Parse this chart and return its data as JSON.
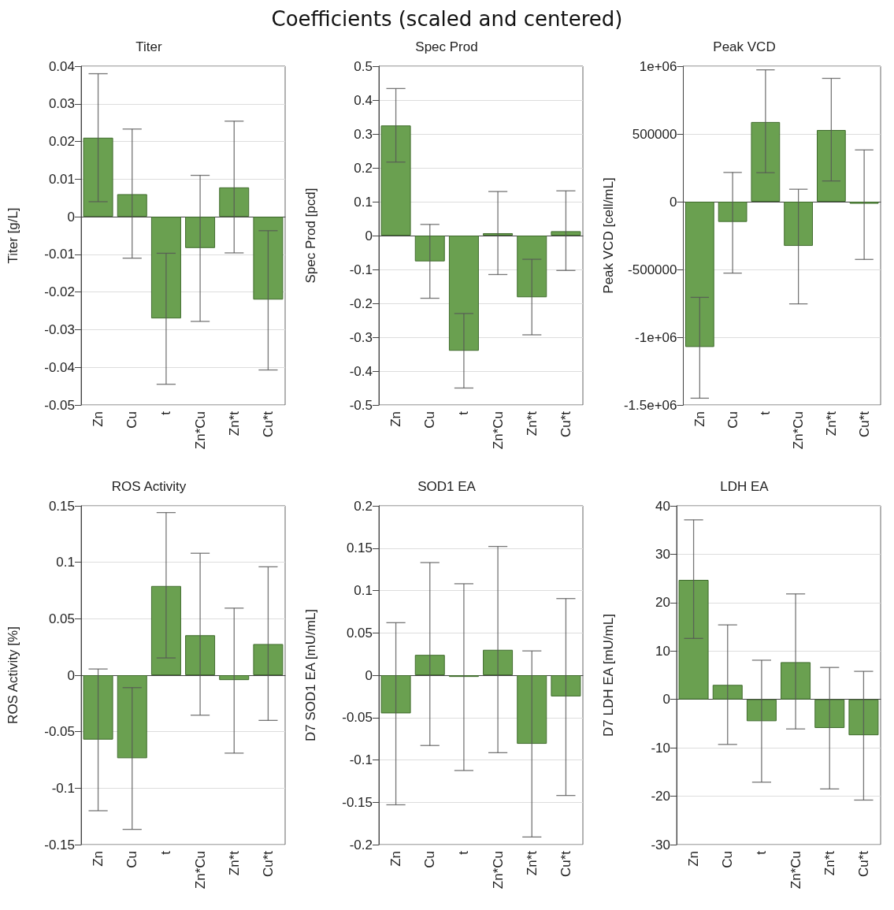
{
  "chart_data": [
    {
      "type": "other",
      "title": "Coefficients (scaled and centered)"
    },
    {
      "type": "bar",
      "title": "Titer",
      "ylabel": "Titer [g/L]",
      "categories": [
        "Zn",
        "Cu",
        "t",
        "Zn*Cu",
        "Zn*t",
        "Cu*t"
      ],
      "color": "#6aa050",
      "values": [
        0.021,
        0.006,
        -0.027,
        -0.0083,
        0.0078,
        -0.022
      ],
      "errors": [
        [
          0.004,
          0.038
        ],
        [
          -0.011,
          0.0233
        ],
        [
          -0.0445,
          -0.0097
        ],
        [
          -0.0278,
          0.011
        ],
        [
          -0.0096,
          0.0254
        ],
        [
          -0.0407,
          -0.0037
        ]
      ],
      "ylim": [
        -0.05,
        0.04
      ],
      "yticks": [
        -0.05,
        -0.04,
        -0.03,
        -0.02,
        -0.01,
        0,
        0.01,
        0.02,
        0.03,
        0.04
      ],
      "grid": "y"
    },
    {
      "type": "bar",
      "title": "Spec Prod",
      "ylabel": "Spec Prod [pcd]",
      "categories": [
        "Zn",
        "Cu",
        "t",
        "Zn*Cu",
        "Zn*t",
        "Cu*t"
      ],
      "color": "#6aa050",
      "values": [
        0.325,
        -0.076,
        -0.34,
        0.007,
        -0.182,
        0.013
      ],
      "errors": [
        [
          0.217,
          0.434
        ],
        [
          -0.185,
          0.033
        ],
        [
          -0.45,
          -0.23
        ],
        [
          -0.115,
          0.13
        ],
        [
          -0.293,
          -0.07
        ],
        [
          -0.103,
          0.132
        ]
      ],
      "ylim": [
        -0.5,
        0.5
      ],
      "yticks": [
        -0.5,
        -0.4,
        -0.3,
        -0.2,
        -0.1,
        0,
        0.1,
        0.2,
        0.3,
        0.4,
        0.5
      ],
      "grid": "y"
    },
    {
      "type": "bar",
      "title": "Peak VCD",
      "ylabel": "Peak VCD [cell/mL]",
      "categories": [
        "Zn",
        "Cu",
        "t",
        "Zn*Cu",
        "Zn*t",
        "Cu*t"
      ],
      "color": "#6aa050",
      "values": [
        -1072000,
        -149000,
        588000,
        -326000,
        529000,
        -15000
      ],
      "errors": [
        [
          -1450000,
          -706000
        ],
        [
          -527000,
          216000
        ],
        [
          214000,
          973000
        ],
        [
          -754000,
          92000
        ],
        [
          153000,
          910000
        ],
        [
          -426000,
          382000
        ]
      ],
      "ylim": [
        -1500000,
        1000000
      ],
      "yticks": [
        {
          "value": -1500000,
          "label": "-1.5e+06"
        },
        {
          "value": -1000000,
          "label": "-1e+06"
        },
        -500000,
        0,
        500000,
        {
          "value": 1000000,
          "label": "1e+06"
        }
      ],
      "grid": "y"
    },
    {
      "type": "bar",
      "title": "ROS Activity",
      "ylabel": "ROS Activity [%]",
      "categories": [
        "Zn",
        "Cu",
        "t",
        "Zn*Cu",
        "Zn*t",
        "Cu*t"
      ],
      "color": "#6aa050",
      "values": [
        -0.057,
        -0.0735,
        0.079,
        0.0354,
        -0.0043,
        0.0276
      ],
      "errors": [
        [
          -0.12,
          0.0055
        ],
        [
          -0.1365,
          -0.011
        ],
        [
          0.0153,
          0.144
        ],
        [
          -0.0354,
          0.108
        ],
        [
          -0.069,
          0.0594
        ],
        [
          -0.04,
          0.096
        ]
      ],
      "ylim": [
        -0.15,
        0.15
      ],
      "yticks": [
        -0.15,
        -0.1,
        -0.05,
        0,
        0.05,
        0.1,
        0.15
      ],
      "grid": "y"
    },
    {
      "type": "bar",
      "title": "SOD1 EA",
      "ylabel": "D7 SOD1 EA [mU/mL]",
      "categories": [
        "Zn",
        "Cu",
        "t",
        "Zn*Cu",
        "Zn*t",
        "Cu*t"
      ],
      "color": "#6aa050",
      "values": [
        -0.045,
        0.024,
        -0.002,
        0.03,
        -0.081,
        -0.025
      ],
      "errors": [
        [
          -0.153,
          0.062
        ],
        [
          -0.083,
          0.133
        ],
        [
          -0.1125,
          0.108
        ],
        [
          -0.0915,
          0.152
        ],
        [
          -0.191,
          0.0287
        ],
        [
          -0.142,
          0.0905
        ]
      ],
      "ylim": [
        -0.2,
        0.2
      ],
      "yticks": [
        -0.2,
        -0.15,
        -0.1,
        -0.05,
        0,
        0.05,
        0.1,
        0.15,
        0.2
      ],
      "grid": "y"
    },
    {
      "type": "bar",
      "title": "LDH EA",
      "ylabel": "D7 LDH EA [mU/mL]",
      "categories": [
        "Zn",
        "Cu",
        "t",
        "Zn*Cu",
        "Zn*t",
        "Cu*t"
      ],
      "color": "#6aa050",
      "values": [
        24.7,
        3.0,
        -4.5,
        7.7,
        -5.9,
        -7.4
      ],
      "errors": [
        [
          12.6,
          37.1
        ],
        [
          -9.3,
          15.4
        ],
        [
          -17.1,
          8.1
        ],
        [
          -6.1,
          21.8
        ],
        [
          -18.5,
          6.6
        ],
        [
          -20.8,
          5.8
        ]
      ],
      "ylim": [
        -30,
        40
      ],
      "yticks": [
        -30,
        -20,
        -10,
        0,
        10,
        20,
        30,
        40
      ],
      "grid": "y"
    }
  ]
}
